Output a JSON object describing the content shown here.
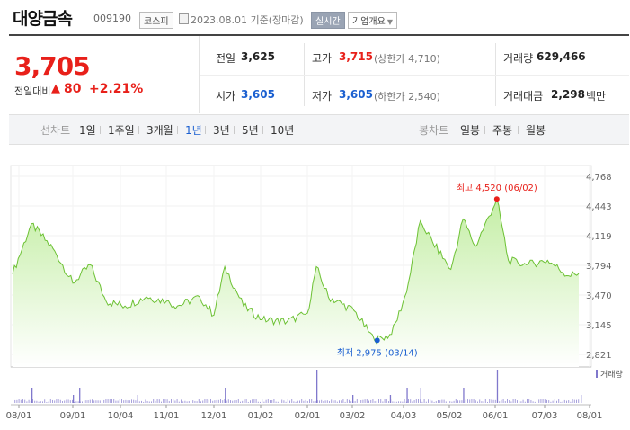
{
  "header": {
    "name": "대양금속",
    "code": "009190",
    "market": "코스피",
    "date_text": "2023.08.01 기준(장마감)",
    "realtime_label": "실시간",
    "company_label": "기업개요"
  },
  "summary": {
    "price": "3,705",
    "change_label": "전일대비",
    "change_symbol": "▲",
    "change_abs": "80",
    "change_pct": "+2.21%",
    "prev_label": "전일",
    "prev_value": "3,625",
    "high_label": "고가",
    "high_value": "3,715",
    "upper_limit": "(상한가 4,710)",
    "volume_label": "거래량",
    "volume_value": "629,466",
    "open_label": "시가",
    "open_value": "3,605",
    "low_label": "저가",
    "low_value": "3,605",
    "lower_limit": "(하한가 2,540)",
    "amount_label": "거래대금",
    "amount_value": "2,298",
    "amount_unit": "백만"
  },
  "tabs": {
    "line_label": "선차트",
    "line_tabs": [
      "1일",
      "1주일",
      "3개월",
      "1년",
      "3년",
      "5년",
      "10년"
    ],
    "active_line_tab": 3,
    "candle_label": "봉차트",
    "candle_tabs": [
      "일봉",
      "주봉",
      "월봉"
    ]
  },
  "colors": {
    "up": "#e8201a",
    "down": "#1a5fd0",
    "line": "#6cc133",
    "area_top": "#c4eea5",
    "volume": "#8078cc"
  },
  "chart_data": {
    "type": "area",
    "title": "",
    "ylim": [
      2821,
      4768
    ],
    "y_ticks": [
      "4,768",
      "4,443",
      "4,119",
      "3,794",
      "3,470",
      "3,145",
      "2,821"
    ],
    "x_tick_labels": [
      "08/01",
      "09/01",
      "10/04",
      "11/01",
      "12/01",
      "01/02",
      "02/01",
      "03/02",
      "04/03",
      "05/02",
      "06/01",
      "07/03",
      "08/01"
    ],
    "anchors": [
      {
        "label": "08/01",
        "value": 3700
      },
      {
        "label": "08/08",
        "value": 4250
      },
      {
        "label": "08/21",
        "value": 3950
      },
      {
        "label": "09/01",
        "value": 3600
      },
      {
        "label": "09/12",
        "value": 3800
      },
      {
        "label": "09/22",
        "value": 3400
      },
      {
        "label": "10/04",
        "value": 3350
      },
      {
        "label": "10/18",
        "value": 3450
      },
      {
        "label": "11/01",
        "value": 3400
      },
      {
        "label": "11/08",
        "value": 3350
      },
      {
        "label": "11/22",
        "value": 3450
      },
      {
        "label": "12/01",
        "value": 3250
      },
      {
        "label": "12/08",
        "value": 3780
      },
      {
        "label": "12/20",
        "value": 3350
      },
      {
        "label": "01/02",
        "value": 3200
      },
      {
        "label": "01/18",
        "value": 3180
      },
      {
        "label": "02/01",
        "value": 3270
      },
      {
        "label": "02/07",
        "value": 3780
      },
      {
        "label": "02/15",
        "value": 3450
      },
      {
        "label": "03/02",
        "value": 3300
      },
      {
        "label": "03/14",
        "value": 2975
      },
      {
        "label": "03/24",
        "value": 3040
      },
      {
        "label": "04/03",
        "value": 3500
      },
      {
        "label": "04/12",
        "value": 4280
      },
      {
        "label": "04/20",
        "value": 4050
      },
      {
        "label": "05/02",
        "value": 3750
      },
      {
        "label": "05/10",
        "value": 4300
      },
      {
        "label": "05/18",
        "value": 4000
      },
      {
        "label": "06/02",
        "value": 4520
      },
      {
        "label": "06/09",
        "value": 3850
      },
      {
        "label": "06/20",
        "value": 3800
      },
      {
        "label": "07/03",
        "value": 3850
      },
      {
        "label": "07/17",
        "value": 3680
      },
      {
        "label": "08/01",
        "value": 3705
      }
    ],
    "max_annotation": {
      "label": "최고",
      "value": "4,520",
      "date": "(06/02)"
    },
    "min_annotation": {
      "label": "최저",
      "value": "2,975",
      "date": "(03/14)"
    },
    "volume_legend": "거래량",
    "volume_spikes": [
      {
        "date": "08/08",
        "size": "medium"
      },
      {
        "date": "09/01",
        "size": "small"
      },
      {
        "date": "09/05",
        "size": "medium"
      },
      {
        "date": "10/12",
        "size": "small"
      },
      {
        "date": "12/08",
        "size": "medium"
      },
      {
        "date": "02/07",
        "size": "large"
      },
      {
        "date": "03/01",
        "size": "small"
      },
      {
        "date": "03/23",
        "size": "small"
      },
      {
        "date": "04/03",
        "size": "medium"
      },
      {
        "date": "04/12",
        "size": "medium"
      },
      {
        "date": "05/10",
        "size": "medium"
      },
      {
        "date": "06/02",
        "size": "large"
      },
      {
        "date": "07/25",
        "size": "small"
      }
    ]
  }
}
